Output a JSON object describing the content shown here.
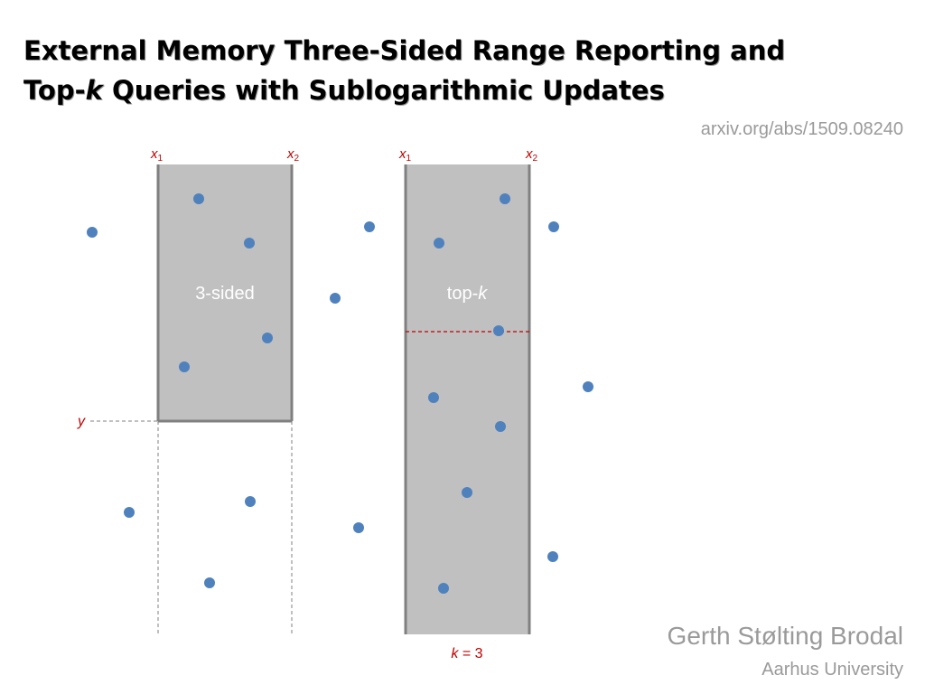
{
  "title": {
    "line1": "External Memory Three-Sided Range Reporting and",
    "line2_prefix": "Top-",
    "line2_k": "k",
    "line2_suffix": " Queries with Sublogarithmic Updates"
  },
  "arxiv": "arxiv.org/abs/1509.08240",
  "author": "Gerth Stølting Brodal",
  "affiliation": "Aarhus University",
  "diagram": {
    "colors": {
      "point": "#4f81bd",
      "region": "#c0c0c0",
      "border": "#808080",
      "label": "#c00000"
    },
    "left": {
      "x1_label": "x",
      "x1_sub": "1",
      "x2_label": "x",
      "x2_sub": "2",
      "region_label": "3-sided",
      "y_label": "y"
    },
    "right": {
      "x1_label": "x",
      "x1_sub": "1",
      "x2_label": "x",
      "x2_sub": "2",
      "region_label_prefix": "top-",
      "region_label_k": "k",
      "k_label": "k",
      "k_value": " = 3"
    }
  }
}
